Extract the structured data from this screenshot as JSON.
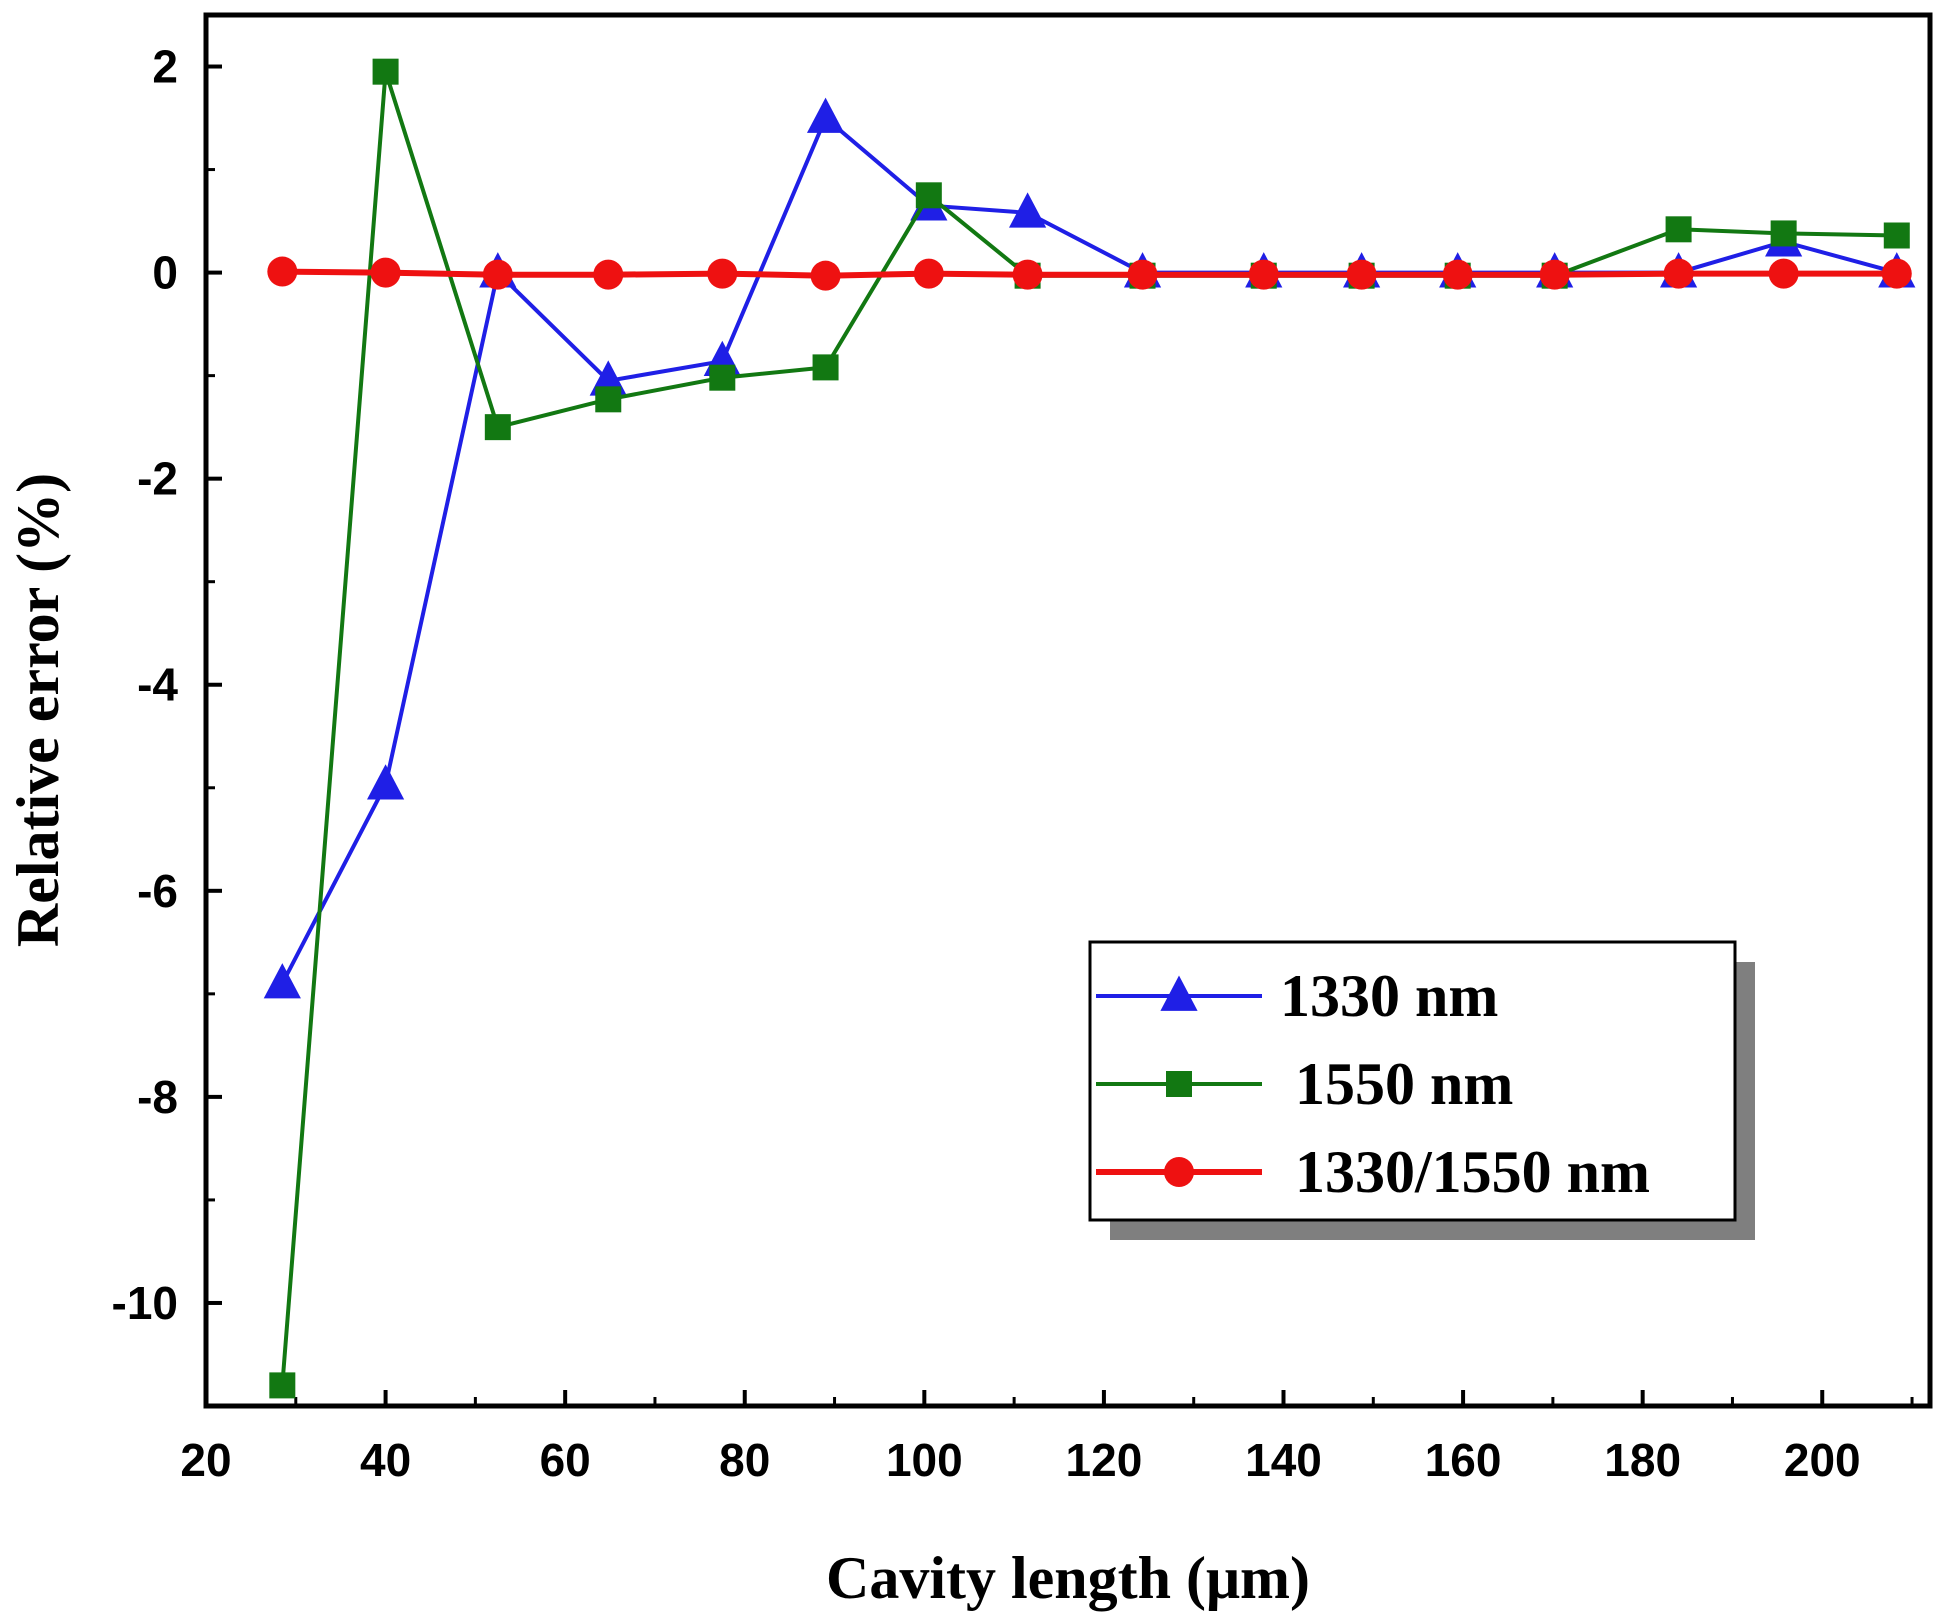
{
  "chart_data": {
    "type": "line",
    "title": "",
    "xlabel": "Cavity length (μm)",
    "ylabel": "Relative error (%)",
    "xlim": [
      20,
      212
    ],
    "ylim": [
      -11,
      2.5
    ],
    "xticks": [
      20,
      40,
      60,
      80,
      100,
      120,
      140,
      160,
      180,
      200
    ],
    "xtick_labels": [
      "20",
      "40",
      "60",
      "80",
      "100",
      "120",
      "140",
      "160",
      "180",
      "200"
    ],
    "yticks": [
      2,
      0,
      -2,
      -4,
      -6,
      -8,
      -10
    ],
    "ytick_labels": [
      "2",
      "0",
      "-2",
      "-4",
      "-6",
      "-8",
      "-10"
    ],
    "x": [
      28.5,
      40,
      52.5,
      64.8,
      77.5,
      89,
      100.5,
      111.5,
      124.3,
      137.8,
      148.7,
      159.4,
      170.2,
      184,
      195.7,
      208.3
    ],
    "series": [
      {
        "name": "1330 nm",
        "color": "#1f1fe6",
        "marker": "triangle",
        "values": [
          -6.9,
          -4.97,
          0.0,
          -1.05,
          -0.86,
          1.5,
          0.65,
          0.58,
          0.0,
          0.0,
          0.0,
          0.0,
          0.0,
          0.0,
          0.3,
          0.0
        ]
      },
      {
        "name": "1550 nm",
        "color": "#127812",
        "marker": "square",
        "values": [
          -10.8,
          1.95,
          -1.5,
          -1.23,
          -1.02,
          -0.92,
          0.75,
          -0.03,
          -0.03,
          -0.03,
          -0.03,
          -0.03,
          -0.03,
          0.42,
          0.38,
          0.36
        ]
      },
      {
        "name": "1330/1550 nm",
        "color": "#ee1111",
        "marker": "circle",
        "values": [
          0.01,
          0.0,
          -0.02,
          -0.02,
          -0.01,
          -0.03,
          -0.01,
          -0.02,
          -0.02,
          -0.02,
          -0.02,
          -0.02,
          -0.02,
          -0.01,
          -0.01,
          -0.01
        ]
      }
    ],
    "legend": {
      "position": "bottom-right",
      "entries": [
        "1330 nm",
        "1550 nm",
        "1330/1550 nm"
      ]
    },
    "grid": false
  }
}
